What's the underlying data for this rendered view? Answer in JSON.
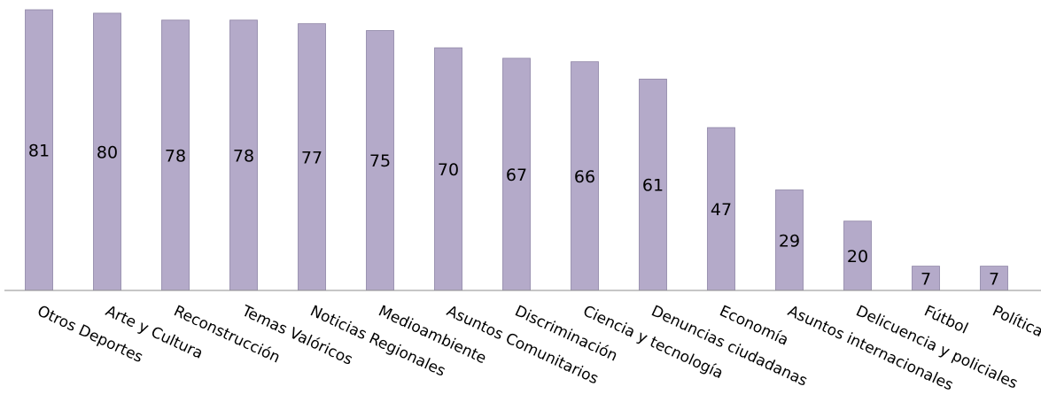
{
  "chart_data": {
    "type": "bar",
    "title": "",
    "xlabel": "",
    "ylabel": "",
    "categories": [
      "Otros Deportes",
      "Arte y Cultura",
      "Reconstrucción",
      "Temas Valóricos",
      "Noticias Regionales",
      "Medioambiente",
      "Asuntos Comunitarios",
      "Discriminación",
      "Ciencia y tecnología",
      "Denuncias ciudadanas",
      "Economía",
      "Asuntos internacionales",
      "Delicuencia y policiales",
      "Fútbol",
      "Política"
    ],
    "values": [
      81,
      80,
      78,
      78,
      77,
      75,
      70,
      67,
      66,
      61,
      47,
      29,
      20,
      7,
      7
    ],
    "ylim": [
      0,
      81
    ],
    "grid": false,
    "legend": "none",
    "colors": {
      "bar_fill": "#b4aac9",
      "bar_stroke": "#8e84a6",
      "axis": "#8c8c8c",
      "text": "#000000"
    }
  }
}
